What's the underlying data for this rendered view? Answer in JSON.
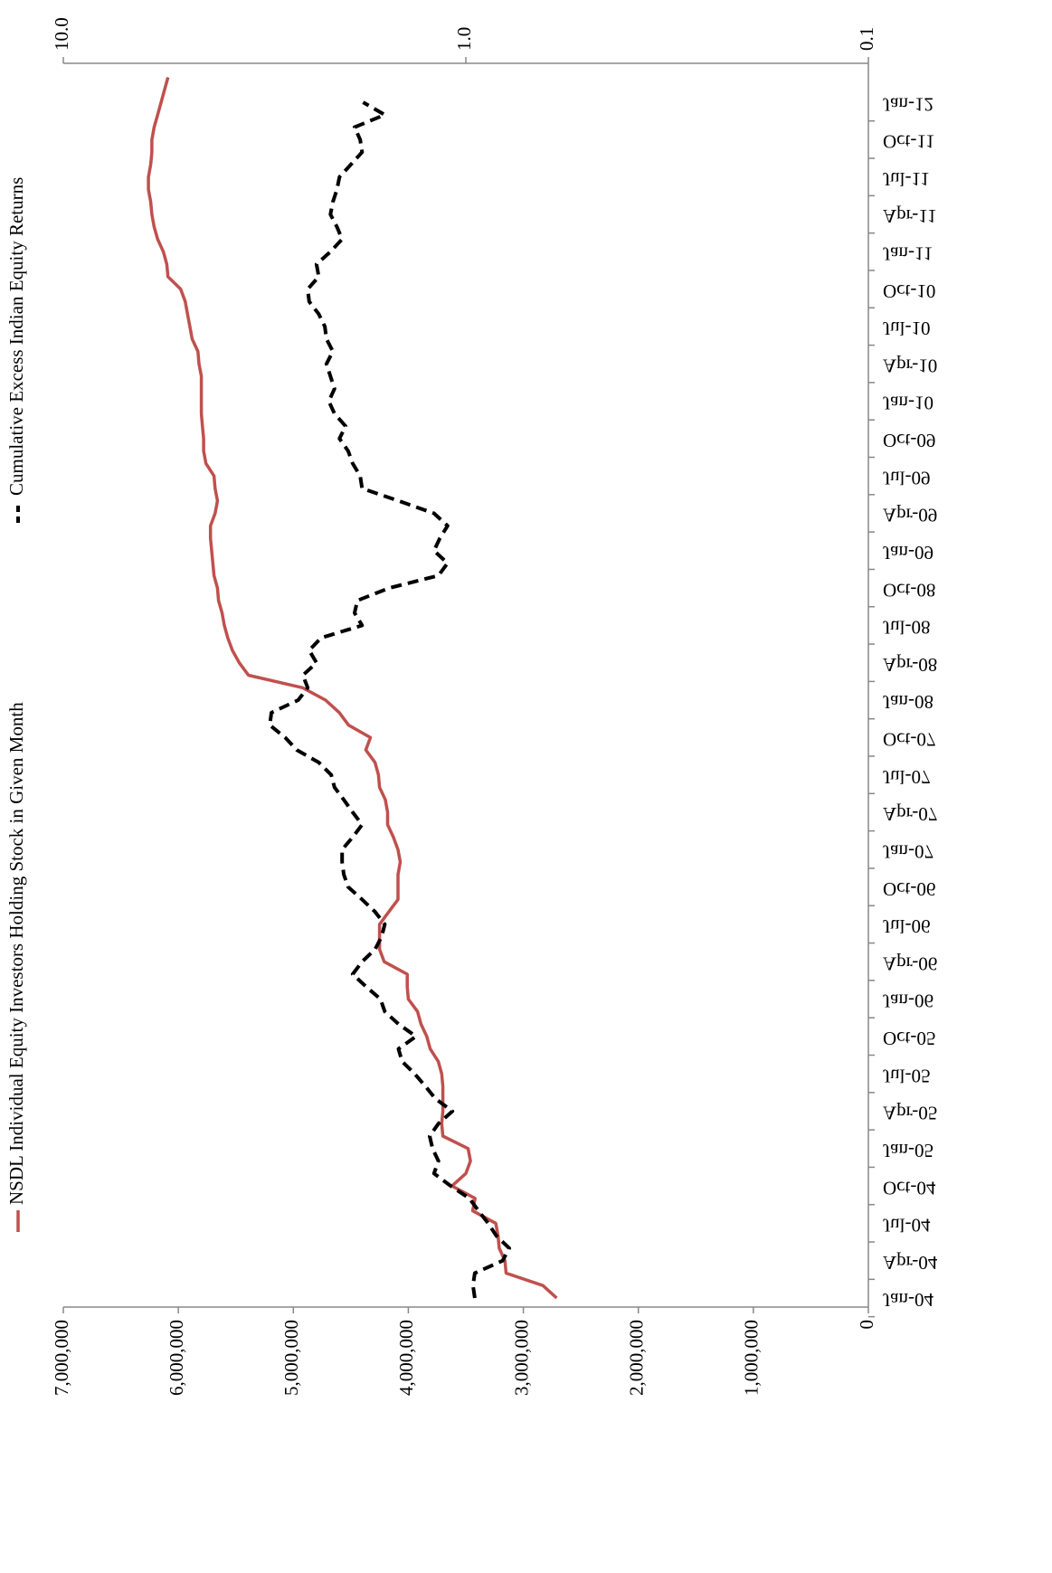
{
  "chart_data": {
    "type": "line",
    "categories": [
      "Jan-04",
      null,
      null,
      "Apr-04",
      null,
      null,
      "Jul-04",
      null,
      null,
      "Oct-04",
      null,
      null,
      "Jan-05",
      null,
      null,
      "Apr-05",
      null,
      null,
      "Jul-05",
      null,
      null,
      "Oct-05",
      null,
      null,
      "Jan-06",
      null,
      null,
      "Apr-06",
      null,
      null,
      "Jul-06",
      null,
      null,
      "Oct-06",
      null,
      null,
      "Jan-07",
      null,
      null,
      "Apr-07",
      null,
      null,
      "Jul-07",
      null,
      null,
      "Oct-07",
      null,
      null,
      "Jan-08",
      null,
      null,
      "Apr-08",
      null,
      null,
      "Jul-08",
      null,
      null,
      "Oct-08",
      null,
      null,
      "Jan-09",
      null,
      null,
      "Apr-09",
      null,
      null,
      "Jul-09",
      null,
      null,
      "Oct-09",
      null,
      null,
      "Jan-10",
      null,
      null,
      "Apr-10",
      null,
      null,
      "Jul-10",
      null,
      null,
      "Oct-10",
      null,
      null,
      "Jan-11",
      null,
      null,
      "Apr-11",
      null,
      null,
      "Jul-11",
      null,
      null,
      "Oct-11",
      null,
      null,
      "Jan-12",
      null,
      null
    ],
    "series": [
      {
        "name": "NSDL Individual Equity Investors Holding Stock in Given Month",
        "color": "#c0504d",
        "dash": false,
        "values": [
          2710000,
          2830000,
          3150000,
          3160000,
          3210000,
          3220000,
          3240000,
          3440000,
          3420000,
          3620000,
          3500000,
          3460000,
          3480000,
          3700000,
          3710000,
          3700000,
          3700000,
          3700000,
          3710000,
          3740000,
          3810000,
          3840000,
          3890000,
          3920000,
          4000000,
          4010000,
          4010000,
          4210000,
          4250000,
          4250000,
          4250000,
          4170000,
          4090000,
          4090000,
          4090000,
          4070000,
          4090000,
          4130000,
          4180000,
          4180000,
          4200000,
          4250000,
          4260000,
          4290000,
          4370000,
          4330000,
          4520000,
          4600000,
          4720000,
          4920000,
          5390000,
          5470000,
          5530000,
          5570000,
          5600000,
          5620000,
          5650000,
          5660000,
          5690000,
          5700000,
          5710000,
          5720000,
          5720000,
          5680000,
          5660000,
          5680000,
          5690000,
          5760000,
          5780000,
          5780000,
          5790000,
          5800000,
          5800000,
          5800000,
          5800000,
          5820000,
          5830000,
          5880000,
          5900000,
          5920000,
          5940000,
          5980000,
          6090000,
          6100000,
          6130000,
          6180000,
          6210000,
          6230000,
          6240000,
          6260000,
          6260000,
          6240000,
          6230000,
          6230000,
          6210000,
          6180000,
          6150000,
          6120000,
          6090000
        ]
      },
      {
        "name": "Cumulative Excess Indian Equity Returns",
        "color": "#000000",
        "dash": true,
        "axis": "y2",
        "values": [
          0.95,
          0.96,
          0.95,
          0.81,
          0.78,
          0.84,
          0.88,
          0.93,
          0.98,
          1.09,
          1.2,
          1.17,
          1.21,
          1.23,
          1.17,
          1.08,
          1.19,
          1.26,
          1.34,
          1.44,
          1.47,
          1.33,
          1.47,
          1.59,
          1.63,
          1.77,
          1.91,
          1.81,
          1.68,
          1.62,
          1.59,
          1.68,
          1.81,
          1.96,
          2.01,
          2.03,
          2.03,
          1.91,
          1.81,
          1.91,
          2.01,
          2.12,
          2.16,
          2.32,
          2.63,
          2.81,
          3.07,
          3.04,
          2.61,
          2.47,
          2.54,
          2.35,
          2.45,
          2.29,
          1.81,
          1.89,
          1.86,
          1.55,
          1.17,
          1.11,
          1.2,
          1.16,
          1.11,
          1.2,
          1.47,
          1.81,
          1.83,
          1.91,
          1.96,
          2.06,
          1.99,
          2.12,
          2.19,
          2.12,
          2.17,
          2.22,
          2.14,
          2.22,
          2.24,
          2.32,
          2.45,
          2.47,
          2.32,
          2.35,
          2.17,
          2.03,
          2.09,
          2.17,
          2.14,
          2.09,
          2.06,
          1.93,
          1.81,
          1.83,
          1.89,
          1.59,
          1.8,
          null,
          null
        ]
      }
    ],
    "ylim": [
      0,
      7000000
    ],
    "yticks": [
      0,
      {
        "value": 1000000,
        "label": "1,000,000"
      },
      {
        "value": 2000000,
        "label": "2,000,000"
      },
      {
        "value": 3000000,
        "label": "3,000,000"
      },
      {
        "value": 4000000,
        "label": "4,000,000"
      },
      {
        "value": 5000000,
        "label": "5,000,000"
      },
      {
        "value": 6000000,
        "label": "6,000,000"
      },
      {
        "value": 7000000,
        "label": "7,000,000"
      }
    ],
    "y2lim": [
      0.1,
      10
    ],
    "y2log": true,
    "y2ticks": [
      0.1,
      {
        "value": 1,
        "label": "1.0"
      },
      {
        "value": 10,
        "label": "10.0"
      }
    ],
    "grid": false
  }
}
